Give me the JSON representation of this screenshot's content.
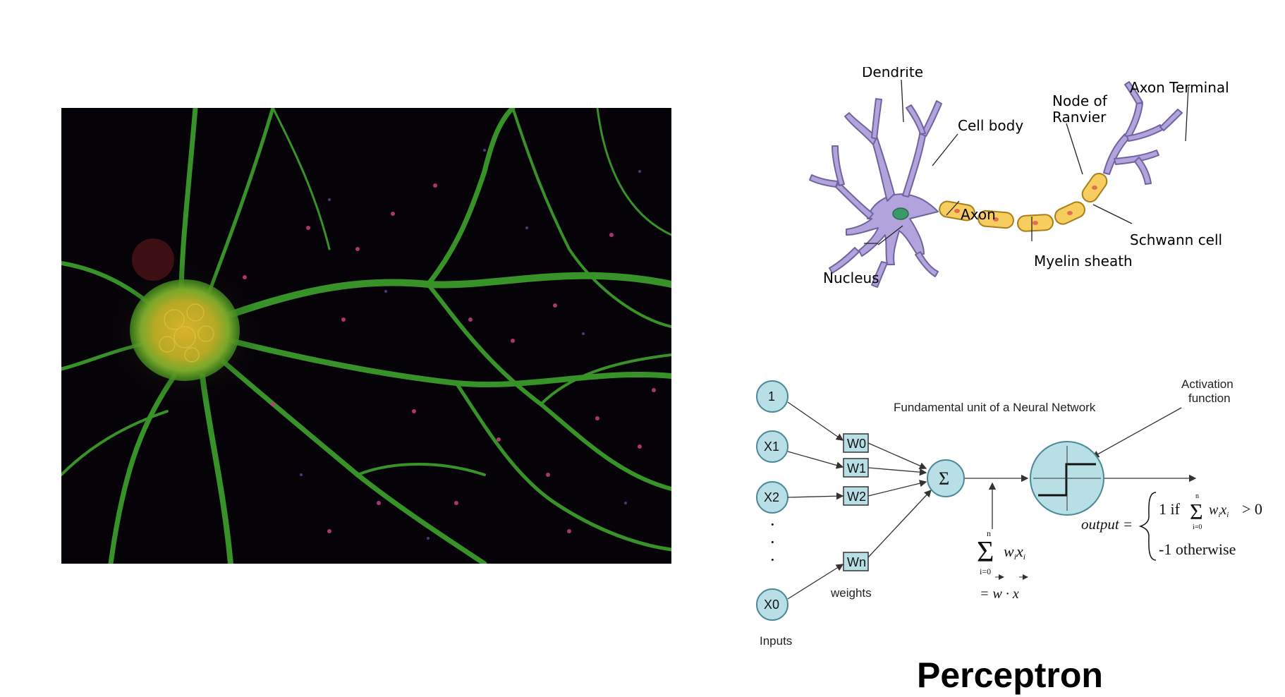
{
  "title": "Perceptron",
  "neuron_labels": {
    "dendrite": "Dendrite",
    "cell_body": "Cell body",
    "nucleus": "Nucleus",
    "axon": "Axon",
    "node_of_ranvier_line1": "Node of",
    "node_of_ranvier_line2": "Ranvier",
    "axon_terminal": "Axon Terminal",
    "schwann_cell": "Schwann cell",
    "myelin_sheath": "Myelin sheath"
  },
  "perceptron": {
    "heading": "Fundamental unit of a Neural Network",
    "activation_line1": "Activation",
    "activation_line2": "function",
    "weights_label": "weights",
    "inputs_label": "Inputs",
    "input_nodes": [
      "1",
      "X1",
      "X2",
      "X0"
    ],
    "weight_nodes": [
      "W0",
      "W1",
      "W2",
      "Wn"
    ],
    "sum_symbol": "Σ",
    "dots": "·",
    "sum_formula": "Σ wᵢxᵢ",
    "sum_lower": "i=0",
    "sum_upper": "n",
    "sum_equals": "= w · x",
    "output_label": "output =",
    "case1": "1 if",
    "case1_tail": "> 0",
    "case2": "-1 otherwise"
  },
  "colors": {
    "node_fill": "#b9dfe6",
    "node_stroke": "#4a8a97",
    "neuron_purple": "#b3a3dc",
    "myelin_yellow": "#f6cd5e",
    "nucleus_green": "#3a9a6a",
    "microscope_bg": "#050308",
    "microscope_green": "#4dba38",
    "microscope_yellow": "#c9b82a",
    "microscope_magenta": "#c0397c"
  }
}
